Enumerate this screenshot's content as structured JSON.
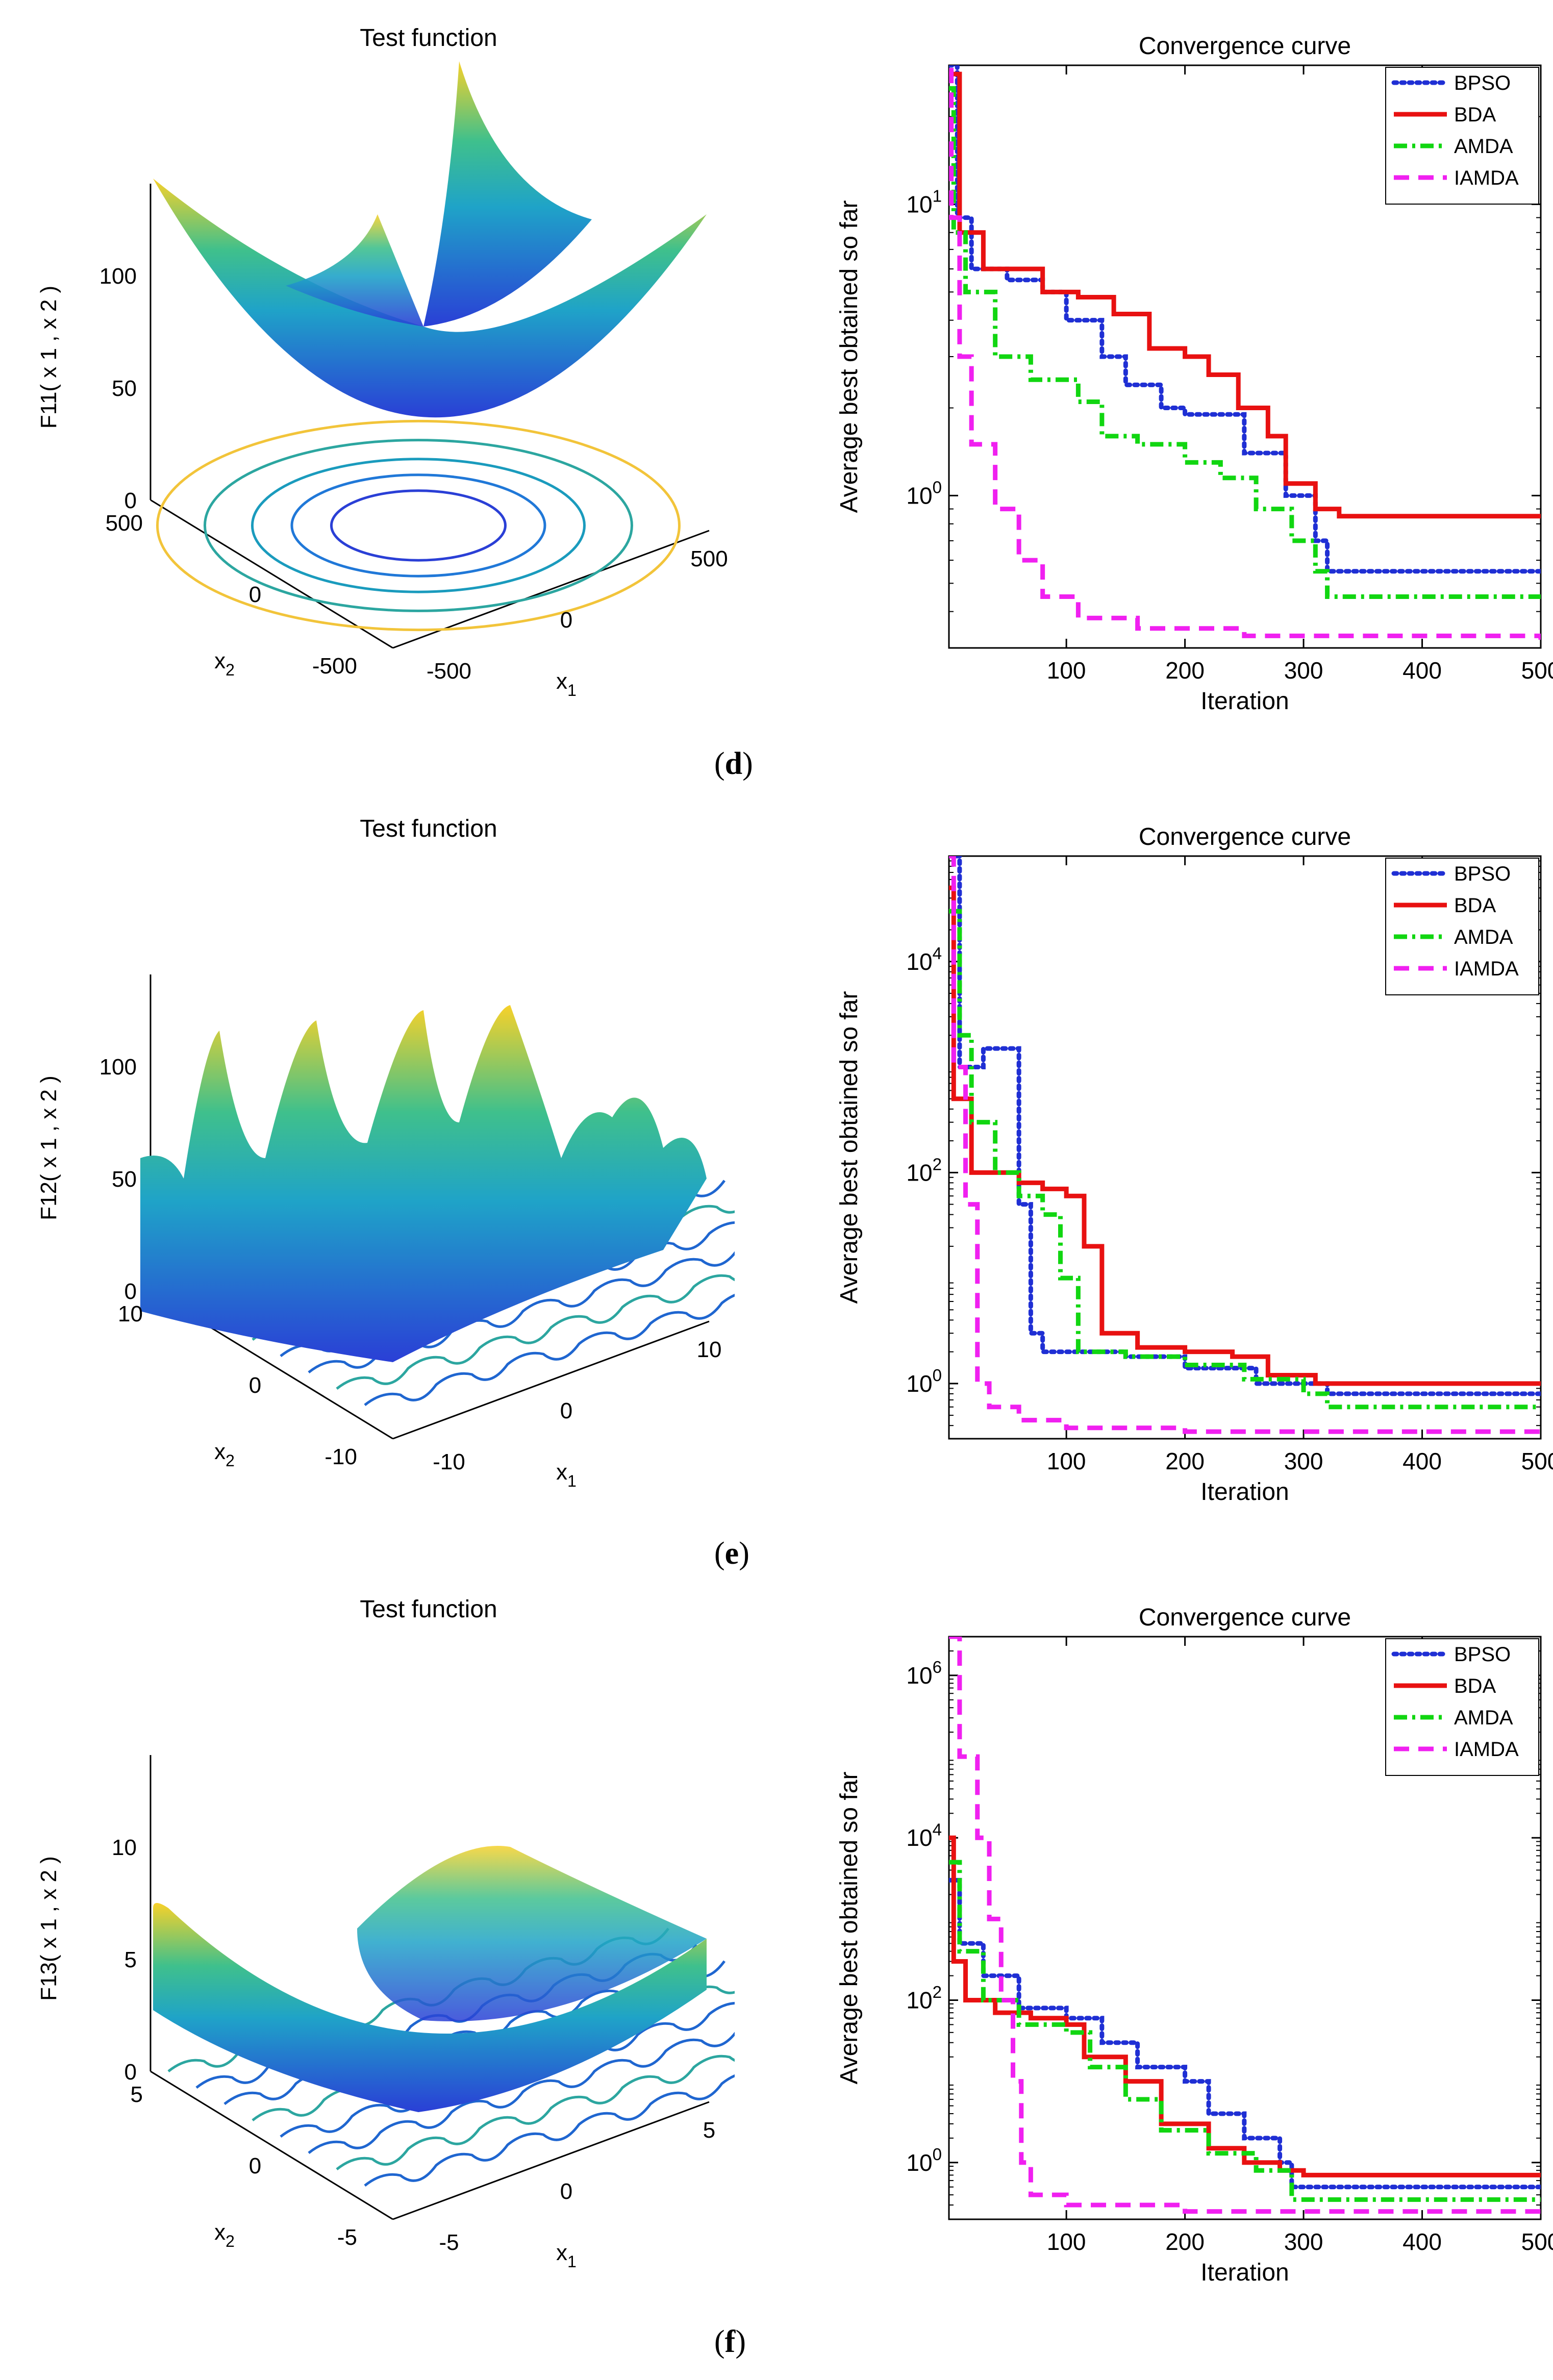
{
  "panel_labels": [
    "d",
    "e",
    "f"
  ],
  "chart_data": [
    {
      "type": "surface3d",
      "title": "Test function",
      "zlabel": "F11( x 1 , x 2 )",
      "xlabel": "x1",
      "ylabel": "x2",
      "x_ticks": [
        "-500",
        "0",
        "500"
      ],
      "y_ticks": [
        "-500",
        "0",
        "500"
      ],
      "z_ticks": [
        "0",
        "50",
        "100"
      ]
    },
    {
      "type": "line",
      "title": "Convergence curve",
      "xlabel": "Iteration",
      "ylabel": "Average best obtained so far",
      "yscale": "log",
      "xlim": [
        1,
        500
      ],
      "ylim": [
        0.3,
        30
      ],
      "x_ticks": [
        100,
        200,
        300,
        400,
        500
      ],
      "y_ticks": [
        {
          "value": 1,
          "label": "10^0"
        },
        {
          "value": 10,
          "label": "10^1"
        }
      ],
      "series": [
        {
          "name": "BPSO",
          "color": "#1f2fd4",
          "style": "dotted",
          "points": [
            [
              1,
              30
            ],
            [
              8,
              9
            ],
            [
              20,
              6
            ],
            [
              50,
              5.5
            ],
            [
              80,
              5
            ],
            [
              100,
              4
            ],
            [
              130,
              3
            ],
            [
              150,
              2.4
            ],
            [
              180,
              2
            ],
            [
              200,
              1.9
            ],
            [
              250,
              1.4
            ],
            [
              270,
              1.4
            ],
            [
              285,
              1
            ],
            [
              310,
              0.7
            ],
            [
              320,
              0.55
            ],
            [
              500,
              0.55
            ]
          ]
        },
        {
          "name": "BDA",
          "color": "#e81111",
          "style": "solid",
          "points": [
            [
              1,
              28
            ],
            [
              10,
              8
            ],
            [
              30,
              6
            ],
            [
              60,
              6
            ],
            [
              80,
              5
            ],
            [
              110,
              4.8
            ],
            [
              140,
              4.2
            ],
            [
              170,
              3.2
            ],
            [
              200,
              3
            ],
            [
              220,
              2.6
            ],
            [
              245,
              2
            ],
            [
              270,
              1.6
            ],
            [
              285,
              1.1
            ],
            [
              310,
              0.9
            ],
            [
              330,
              0.85
            ],
            [
              500,
              0.85
            ]
          ]
        },
        {
          "name": "AMDA",
          "color": "#11d611",
          "style": "dashdot",
          "points": [
            [
              1,
              25
            ],
            [
              5,
              8
            ],
            [
              15,
              5
            ],
            [
              40,
              3
            ],
            [
              70,
              2.5
            ],
            [
              110,
              2.1
            ],
            [
              130,
              1.6
            ],
            [
              160,
              1.5
            ],
            [
              200,
              1.3
            ],
            [
              230,
              1.15
            ],
            [
              260,
              0.9
            ],
            [
              290,
              0.7
            ],
            [
              310,
              0.55
            ],
            [
              320,
              0.45
            ],
            [
              500,
              0.45
            ]
          ]
        },
        {
          "name": "IAMDA",
          "color": "#f020f0",
          "style": "dashed",
          "points": [
            [
              1,
              35
            ],
            [
              3,
              9
            ],
            [
              10,
              3
            ],
            [
              20,
              1.5
            ],
            [
              40,
              0.9
            ],
            [
              60,
              0.6
            ],
            [
              80,
              0.45
            ],
            [
              110,
              0.38
            ],
            [
              140,
              0.38
            ],
            [
              160,
              0.35
            ],
            [
              200,
              0.35
            ],
            [
              250,
              0.33
            ],
            [
              500,
              0.32
            ]
          ]
        }
      ]
    },
    {
      "type": "surface3d",
      "title": "Test function",
      "zlabel": "F12( x 1 , x 2 )",
      "xlabel": "x1",
      "ylabel": "x2",
      "x_ticks": [
        "-10",
        "0",
        "10"
      ],
      "y_ticks": [
        "-10",
        "0",
        "10"
      ],
      "z_ticks": [
        "0",
        "50",
        "100"
      ]
    },
    {
      "type": "line",
      "title": "Convergence curve",
      "xlabel": "Iteration",
      "ylabel": "Average best obtained so far",
      "yscale": "log",
      "xlim": [
        1,
        500
      ],
      "ylim": [
        0.3,
        100000
      ],
      "x_ticks": [
        100,
        200,
        300,
        400,
        500
      ],
      "y_ticks": [
        {
          "value": 1,
          "label": "10^0"
        },
        {
          "value": 100,
          "label": "10^2"
        },
        {
          "value": 10000,
          "label": "10^4"
        }
      ],
      "series": [
        {
          "name": "BPSO",
          "color": "#1f2fd4",
          "style": "dotted",
          "points": [
            [
              1,
              100000
            ],
            [
              10,
              1000
            ],
            [
              20,
              1000
            ],
            [
              30,
              1500
            ],
            [
              55,
              1500
            ],
            [
              60,
              50
            ],
            [
              70,
              3
            ],
            [
              80,
              2
            ],
            [
              150,
              1.8
            ],
            [
              200,
              1.4
            ],
            [
              260,
              1
            ],
            [
              320,
              0.8
            ],
            [
              500,
              0.8
            ]
          ]
        },
        {
          "name": "BDA",
          "color": "#e81111",
          "style": "solid",
          "points": [
            [
              1,
              50000
            ],
            [
              5,
              500
            ],
            [
              20,
              100
            ],
            [
              40,
              100
            ],
            [
              60,
              80
            ],
            [
              80,
              70
            ],
            [
              100,
              60
            ],
            [
              115,
              20
            ],
            [
              130,
              3
            ],
            [
              160,
              2.2
            ],
            [
              200,
              2
            ],
            [
              240,
              1.8
            ],
            [
              270,
              1.2
            ],
            [
              310,
              1
            ],
            [
              500,
              1
            ]
          ]
        },
        {
          "name": "AMDA",
          "color": "#11d611",
          "style": "dashdot",
          "points": [
            [
              1,
              30000
            ],
            [
              10,
              2000
            ],
            [
              20,
              300
            ],
            [
              40,
              100
            ],
            [
              60,
              60
            ],
            [
              80,
              40
            ],
            [
              95,
              10
            ],
            [
              110,
              2
            ],
            [
              150,
              1.8
            ],
            [
              200,
              1.5
            ],
            [
              250,
              1.1
            ],
            [
              300,
              0.8
            ],
            [
              320,
              0.6
            ],
            [
              500,
              0.6
            ]
          ]
        },
        {
          "name": "IAMDA",
          "color": "#f020f0",
          "style": "dashed",
          "points": [
            [
              1,
              100000
            ],
            [
              5,
              1000
            ],
            [
              15,
              50
            ],
            [
              25,
              1
            ],
            [
              35,
              0.6
            ],
            [
              60,
              0.45
            ],
            [
              100,
              0.38
            ],
            [
              200,
              0.35
            ],
            [
              500,
              0.33
            ]
          ]
        }
      ]
    },
    {
      "type": "surface3d",
      "title": "Test function",
      "zlabel": "F13( x 1 , x 2 )",
      "xlabel": "x1",
      "ylabel": "x2",
      "x_ticks": [
        "-5",
        "0",
        "5"
      ],
      "y_ticks": [
        "-5",
        "0",
        "5"
      ],
      "z_ticks": [
        "0",
        "5",
        "10"
      ]
    },
    {
      "type": "line",
      "title": "Convergence curve",
      "xlabel": "Iteration",
      "ylabel": "Average best obtained so far",
      "yscale": "log",
      "xlim": [
        1,
        500
      ],
      "ylim": [
        0.2,
        3000000
      ],
      "x_ticks": [
        100,
        200,
        300,
        400,
        500
      ],
      "y_ticks": [
        {
          "value": 1,
          "label": "10^0"
        },
        {
          "value": 100,
          "label": "10^2"
        },
        {
          "value": 10000,
          "label": "10^4"
        },
        {
          "value": 1000000,
          "label": "10^6"
        }
      ],
      "series": [
        {
          "name": "BPSO",
          "color": "#1f2fd4",
          "style": "dotted",
          "points": [
            [
              1,
              3000
            ],
            [
              10,
              500
            ],
            [
              30,
              200
            ],
            [
              60,
              80
            ],
            [
              100,
              60
            ],
            [
              130,
              30
            ],
            [
              160,
              15
            ],
            [
              200,
              10
            ],
            [
              220,
              4
            ],
            [
              250,
              2
            ],
            [
              280,
              1
            ],
            [
              290,
              0.5
            ],
            [
              500,
              0.5
            ]
          ]
        },
        {
          "name": "BDA",
          "color": "#e81111",
          "style": "solid",
          "points": [
            [
              1,
              10000
            ],
            [
              5,
              300
            ],
            [
              15,
              100
            ],
            [
              40,
              70
            ],
            [
              70,
              60
            ],
            [
              100,
              50
            ],
            [
              115,
              20
            ],
            [
              150,
              10
            ],
            [
              180,
              3
            ],
            [
              220,
              1.5
            ],
            [
              250,
              1
            ],
            [
              280,
              0.8
            ],
            [
              300,
              0.7
            ],
            [
              500,
              0.7
            ]
          ]
        },
        {
          "name": "AMDA",
          "color": "#11d611",
          "style": "dashdot",
          "points": [
            [
              1,
              5000
            ],
            [
              10,
              400
            ],
            [
              30,
              100
            ],
            [
              60,
              50
            ],
            [
              100,
              40
            ],
            [
              120,
              15
            ],
            [
              150,
              6
            ],
            [
              180,
              2.5
            ],
            [
              220,
              1.3
            ],
            [
              260,
              0.8
            ],
            [
              290,
              0.35
            ],
            [
              500,
              0.35
            ]
          ]
        },
        {
          "name": "IAMDA",
          "color": "#f020f0",
          "style": "dashed",
          "points": [
            [
              1,
              3000000
            ],
            [
              10,
              100000
            ],
            [
              25,
              10000
            ],
            [
              35,
              1000
            ],
            [
              45,
              100
            ],
            [
              55,
              10
            ],
            [
              62,
              1
            ],
            [
              70,
              0.4
            ],
            [
              100,
              0.3
            ],
            [
              200,
              0.25
            ],
            [
              500,
              0.24
            ]
          ]
        }
      ]
    }
  ]
}
